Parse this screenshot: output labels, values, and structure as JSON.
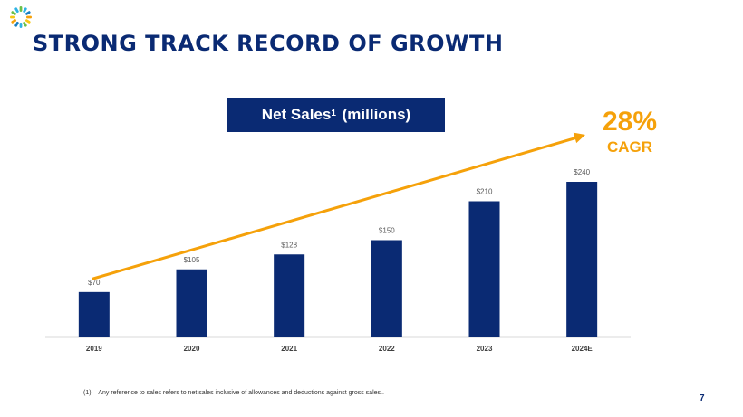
{
  "slide": {
    "title": "STRONG TRACK RECORD OF GROWTH",
    "page_number": "7",
    "footnote_marker": "(1)",
    "footnote_text": "Any reference to sales refers to net sales inclusive of allowances and deductions against gross sales.."
  },
  "legend_box": {
    "label": "Net Sales",
    "superscript": "1",
    "suffix": "(millions)"
  },
  "cagr": {
    "value": "28%",
    "label": "CAGR"
  },
  "colors": {
    "navy": "#0a2a73",
    "orange": "#f5a10a",
    "axis": "#d9d9d9"
  },
  "chart_data": {
    "type": "bar",
    "title": "Net Sales (millions)",
    "categories": [
      "2019",
      "2020",
      "2021",
      "2022",
      "2023",
      "2024E"
    ],
    "values": [
      70,
      105,
      128,
      150,
      210,
      240
    ],
    "data_labels": [
      "$70",
      "$105",
      "$128",
      "$150",
      "$210",
      "$240"
    ],
    "xlabel": "",
    "ylabel": "",
    "ylim": [
      0,
      240
    ],
    "grid": false,
    "trend_annotation": "28% CAGR"
  }
}
